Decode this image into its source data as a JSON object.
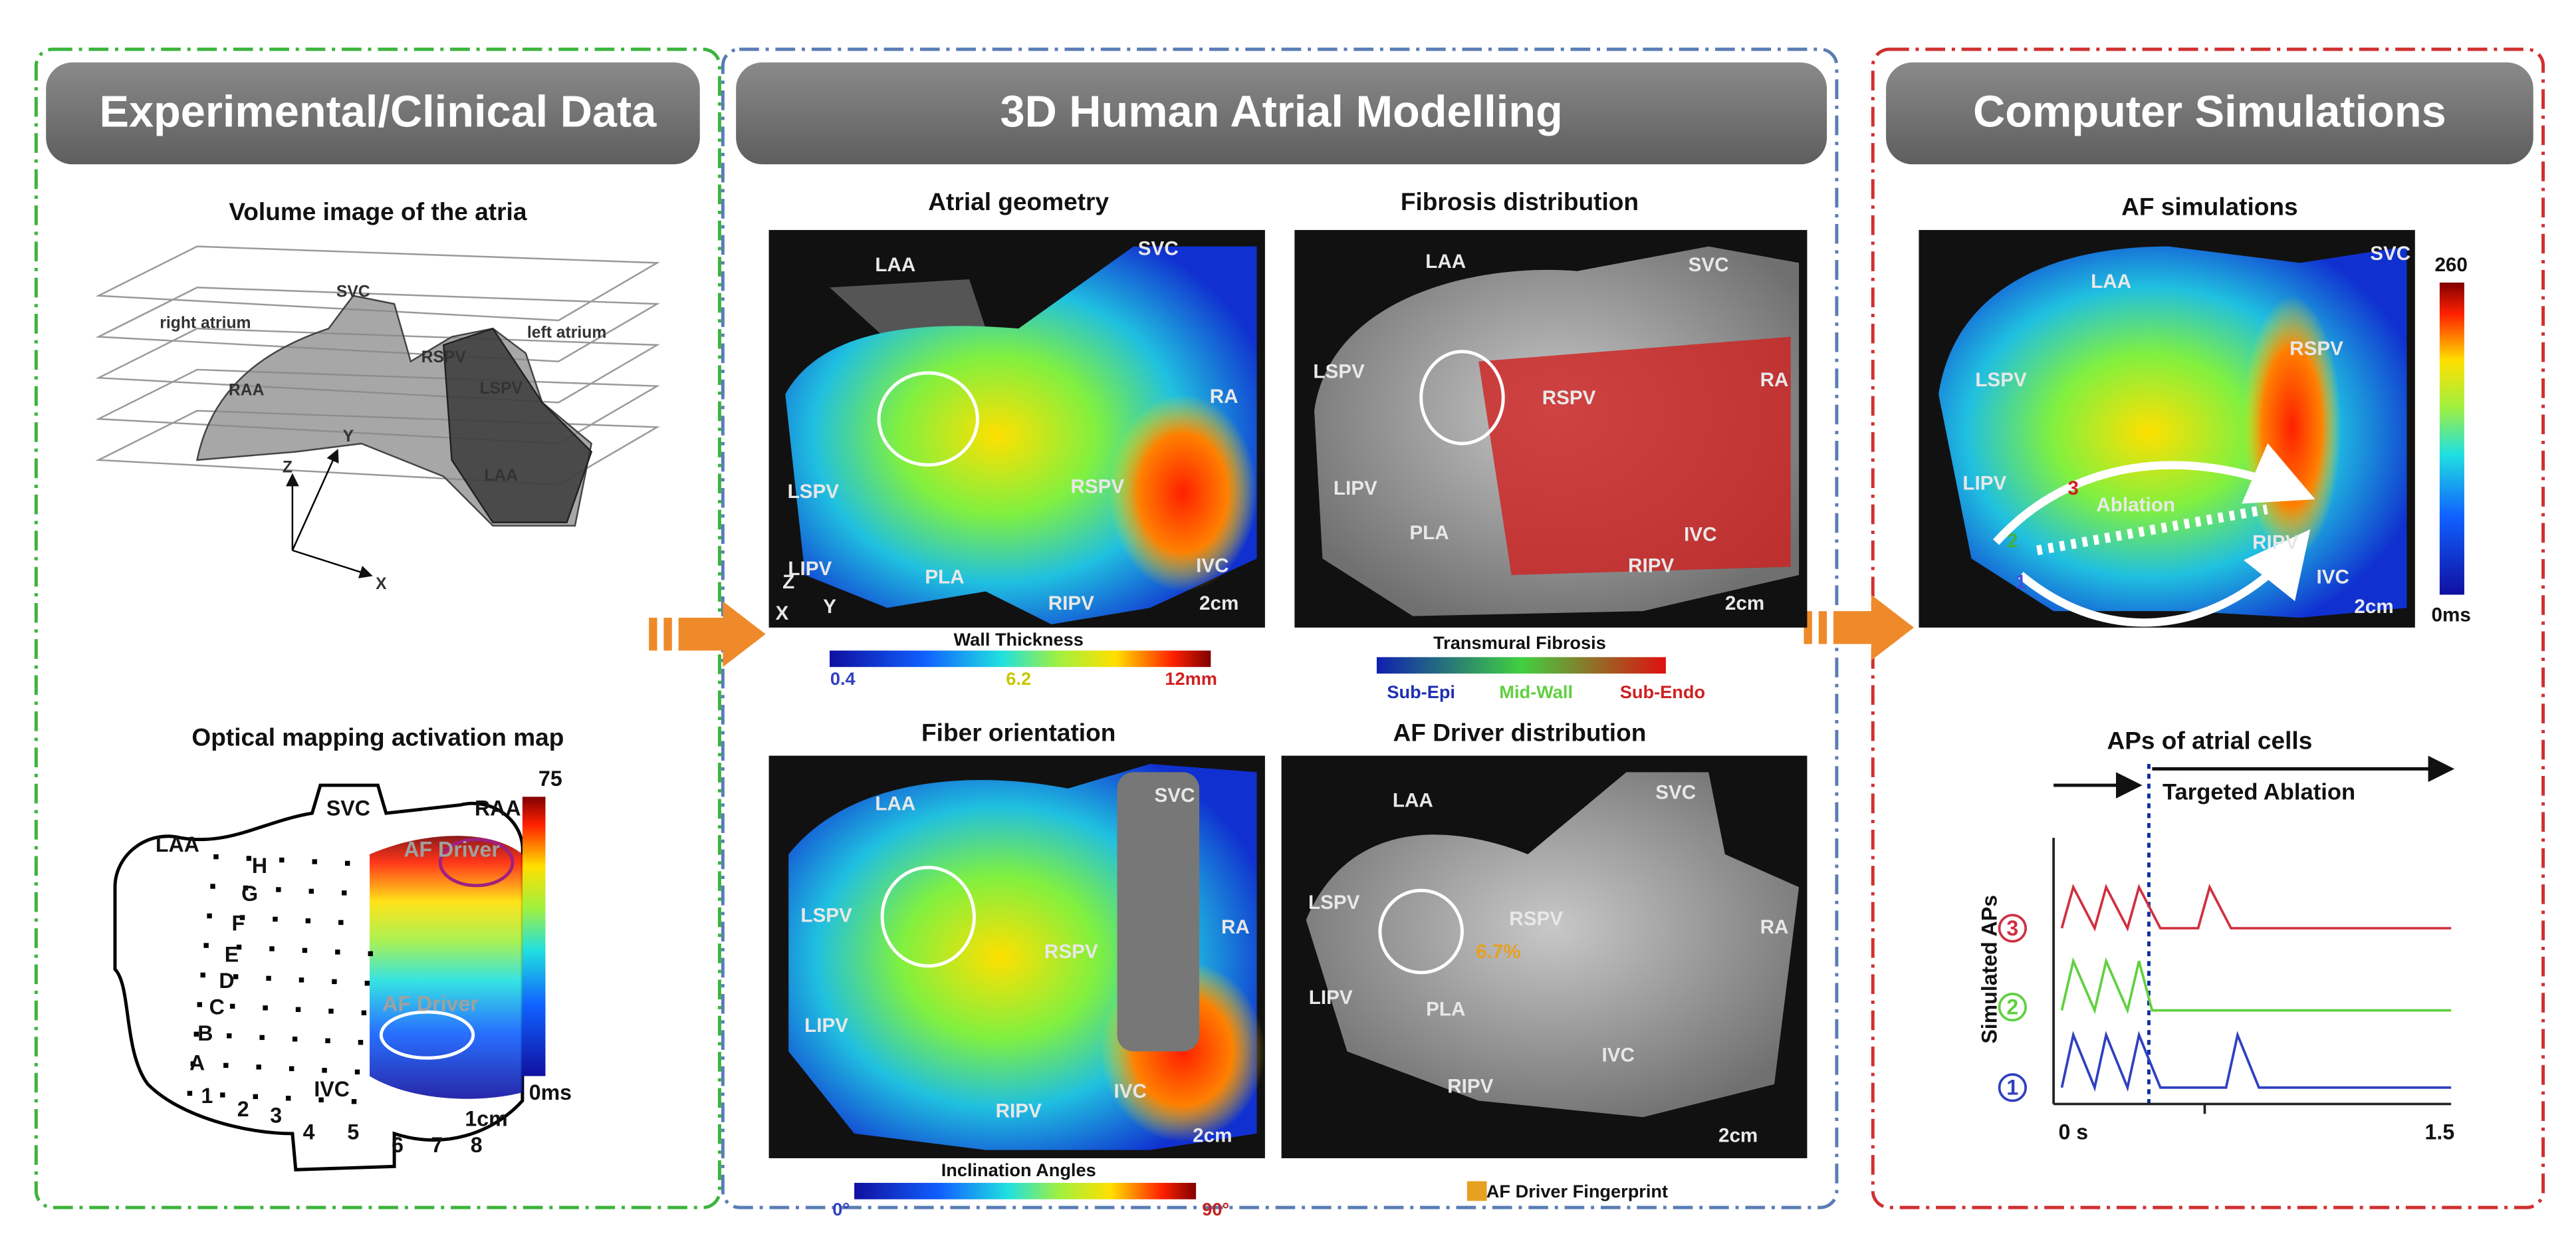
{
  "panels": [
    {
      "header": "Experimental/Clinical Data",
      "sections": [
        {
          "title": "Volume image of the atria",
          "labels": [
            "SVC",
            "right atrium",
            "left atrium",
            "RAA",
            "RSPV",
            "LSPV",
            "LAA",
            "Z",
            "Y",
            "X"
          ]
        },
        {
          "title": "Optical mapping activation map",
          "labels": [
            "SVC",
            "LAA",
            "RAA",
            "H",
            "G",
            "F",
            "E",
            "D",
            "C",
            "B",
            "A",
            "1",
            "2",
            "3",
            "4",
            "5",
            "IVC",
            "6",
            "7",
            "8",
            "AF Driver",
            "AF Driver",
            "75",
            "0ms",
            "1cm"
          ]
        }
      ]
    },
    {
      "header": "3D Human Atrial Modelling",
      "sections": [
        {
          "title": "Atrial geometry",
          "labels": [
            "LAA",
            "SVC",
            "RA",
            "LSPV",
            "LIPV",
            "PLA",
            "RSPV",
            "RIPV",
            "IVC",
            "2cm",
            "Z",
            "Y",
            "X"
          ],
          "legend": {
            "title": "Wall Thickness",
            "items": [
              "0.4",
              "6.2",
              "12mm"
            ]
          }
        },
        {
          "title": "Fibrosis distribution",
          "labels": [
            "LAA",
            "SVC",
            "LSPV",
            "RSPV",
            "RA",
            "LIPV",
            "PLA",
            "IVC",
            "RIPV",
            "2cm"
          ],
          "legend": {
            "title": "Transmural Fibrosis",
            "items": [
              "Sub-Epi",
              "Mid-Wall",
              "Sub-Endo"
            ]
          }
        },
        {
          "title": "Fiber orientation",
          "labels": [
            "LAA",
            "SVC",
            "LSPV",
            "RSPV",
            "RA",
            "LIPV",
            "IVC",
            "RIPV",
            "2cm"
          ],
          "legend": {
            "title": "Inclination Angles",
            "items": [
              "0°",
              "90°"
            ]
          }
        },
        {
          "title": "AF Driver distribution",
          "labels": [
            "LAA",
            "SVC",
            "LSPV",
            "RSPV",
            "RA",
            "LIPV",
            "PLA",
            "6.7%",
            "IVC",
            "RIPV",
            "2cm"
          ],
          "legend": {
            "items": [
              "AF Driver Fingerprint"
            ]
          }
        }
      ]
    },
    {
      "header": "Computer Simulations",
      "sections": [
        {
          "title": "AF simulations",
          "labels": [
            "LAA",
            "SVC",
            "LSPV",
            "RSPV",
            "LIPV",
            "Ablation",
            "RIPV",
            "IVC",
            "1",
            "2",
            "3",
            "2cm",
            "260",
            "0ms"
          ]
        },
        {
          "title": "APs of atrial cells",
          "labels": [
            "Targeted Ablation",
            "Simulated APs",
            "3",
            "2",
            "1",
            "0 s",
            "1.5"
          ]
        }
      ]
    }
  ]
}
